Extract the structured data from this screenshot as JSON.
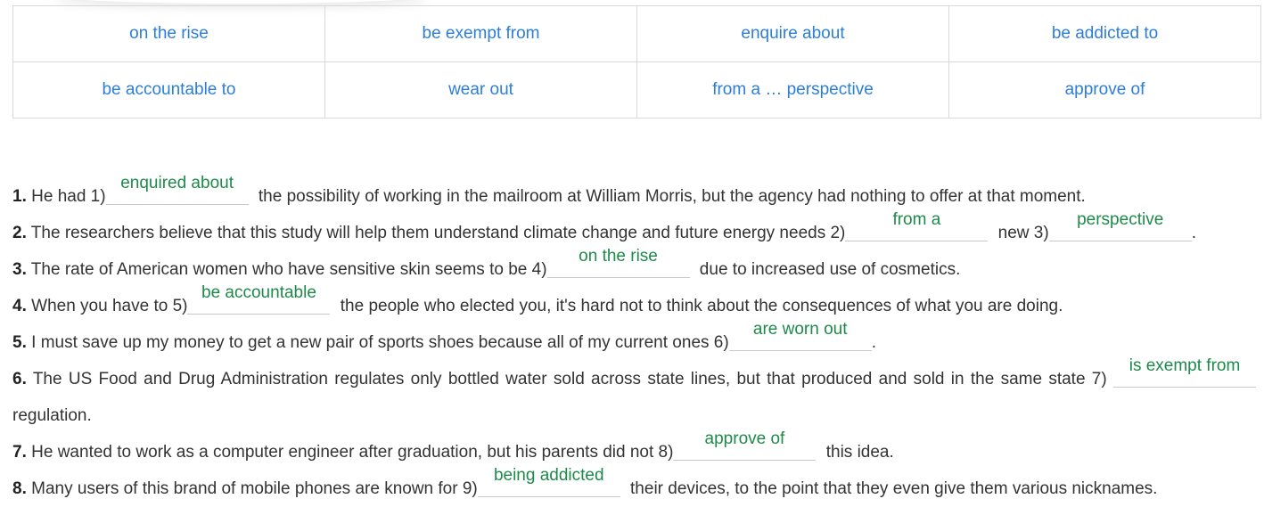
{
  "phrase_table": {
    "rows": [
      [
        "on the rise",
        "be exempt from",
        "enquire about",
        "be addicted to"
      ],
      [
        "be accountable to",
        "wear out",
        "from a … perspective",
        "approve of"
      ]
    ]
  },
  "exercise": {
    "items": [
      {
        "num": "1.",
        "parts": [
          "He had 1)",
          " the possibility of working in the mailroom at William Morris, but the agency had nothing to offer at that moment."
        ],
        "answers": [
          "enquired about"
        ]
      },
      {
        "num": "2.",
        "parts": [
          "The researchers believe that this study will help them understand climate change and future energy needs 2)",
          " new 3)",
          "."
        ],
        "answers": [
          "from a",
          "perspective"
        ]
      },
      {
        "num": "3.",
        "parts": [
          "The rate of American women who have sensitive skin seems to be 4)",
          " due to increased use of cosmetics."
        ],
        "answers": [
          "on the rise"
        ]
      },
      {
        "num": "4.",
        "parts": [
          "When you have to 5)",
          " the people who elected you, it's hard not to think about the consequences of what you are doing."
        ],
        "answers": [
          "be accountable"
        ]
      },
      {
        "num": "5.",
        "parts": [
          "I must save up my money to get a new pair of sports shoes because all of my current ones 6)",
          "."
        ],
        "answers": [
          "are worn out"
        ]
      },
      {
        "num": "6.",
        "parts": [
          "The US Food and Drug Administration regulates only bottled water sold across state lines, but that produced and sold in the same state 7)",
          " regulation."
        ],
        "answers": [
          "is exempt from"
        ]
      },
      {
        "num": "7.",
        "parts": [
          "He wanted to work as a computer engineer after graduation, but his parents did not 8)",
          " this idea."
        ],
        "answers": [
          "approve of"
        ]
      },
      {
        "num": "8.",
        "parts": [
          "Many users of this brand of mobile phones are known for 9)",
          " their devices, to the point that they even give them various nicknames."
        ],
        "answers": [
          "being addicted"
        ]
      }
    ]
  }
}
